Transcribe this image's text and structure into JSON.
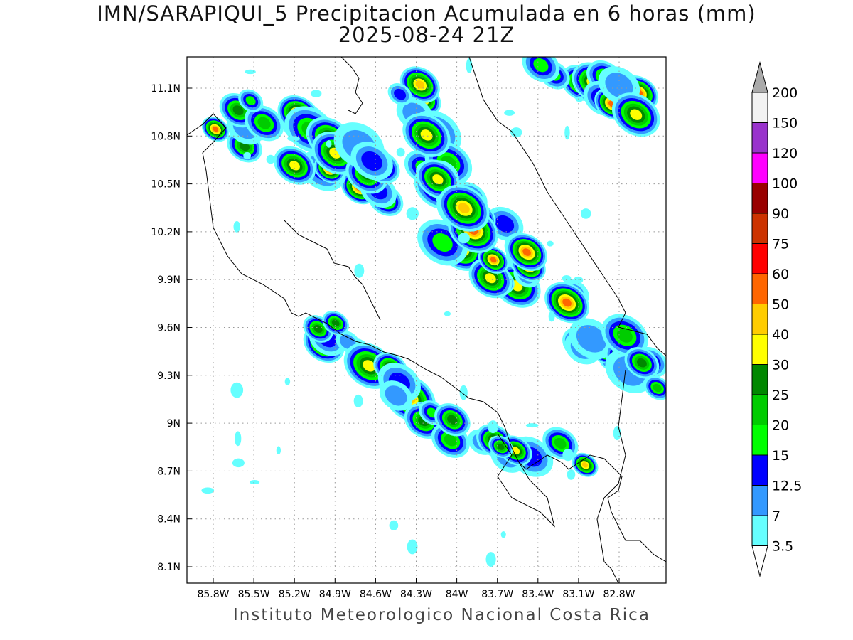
{
  "title": "IMN/SARAPIQUI_5 Precipitacion Acumulada en 6 horas (mm)",
  "subtitle": "2025-08-24 21Z",
  "credit": "Instituto Meteorologico Nacional Costa Rica",
  "map": {
    "lon_ticks": [
      "85.8W",
      "85.5W",
      "85.2W",
      "84.9W",
      "84.6W",
      "84.3W",
      "84W",
      "83.7W",
      "83.4W",
      "83.1W",
      "82.8W"
    ],
    "lat_ticks": [
      "11.1N",
      "10.8N",
      "10.5N",
      "10.2N",
      "9.9N",
      "9.6N",
      "9.3N",
      "9N",
      "8.7N",
      "8.4N",
      "8.1N"
    ]
  },
  "colorbar": {
    "labels": [
      "200",
      "150",
      "120",
      "100",
      "90",
      "75",
      "60",
      "50",
      "40",
      "30",
      "25",
      "20",
      "15",
      "12.5",
      "7",
      "3.5"
    ],
    "colors": [
      "#f2f2f2",
      "#9933cc",
      "#ff00ff",
      "#990000",
      "#cc3300",
      "#ff0000",
      "#ff6600",
      "#ffcc00",
      "#ffff00",
      "#008800",
      "#00cc00",
      "#00ff00",
      "#0000ff",
      "#3399ff",
      "#66ffff"
    ],
    "over_color": "#aaaaaa",
    "under_color": "#ffffff"
  }
}
